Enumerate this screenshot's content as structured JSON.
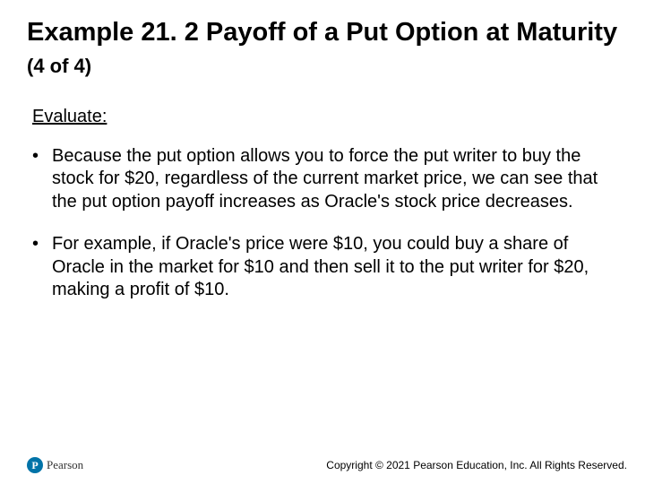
{
  "title_main": "Example 21. 2 Payoff of a Put Option at Maturity ",
  "title_sub": "(4 of 4)",
  "section_label": "Evaluate:",
  "bullets": [
    "Because the put option allows you to force the put writer to buy the stock for $20, regardless of the current market price, we can see that the put option payoff increases as Oracle's stock price decreases.",
    "For example, if Oracle's price were $10, you could buy a share of Oracle in the market for $10 and then sell it to the put writer for $20, making a profit of $10."
  ],
  "logo_letter": "P",
  "logo_text": "Pearson",
  "copyright": "Copyright © 2021 Pearson Education, Inc. All Rights Reserved."
}
